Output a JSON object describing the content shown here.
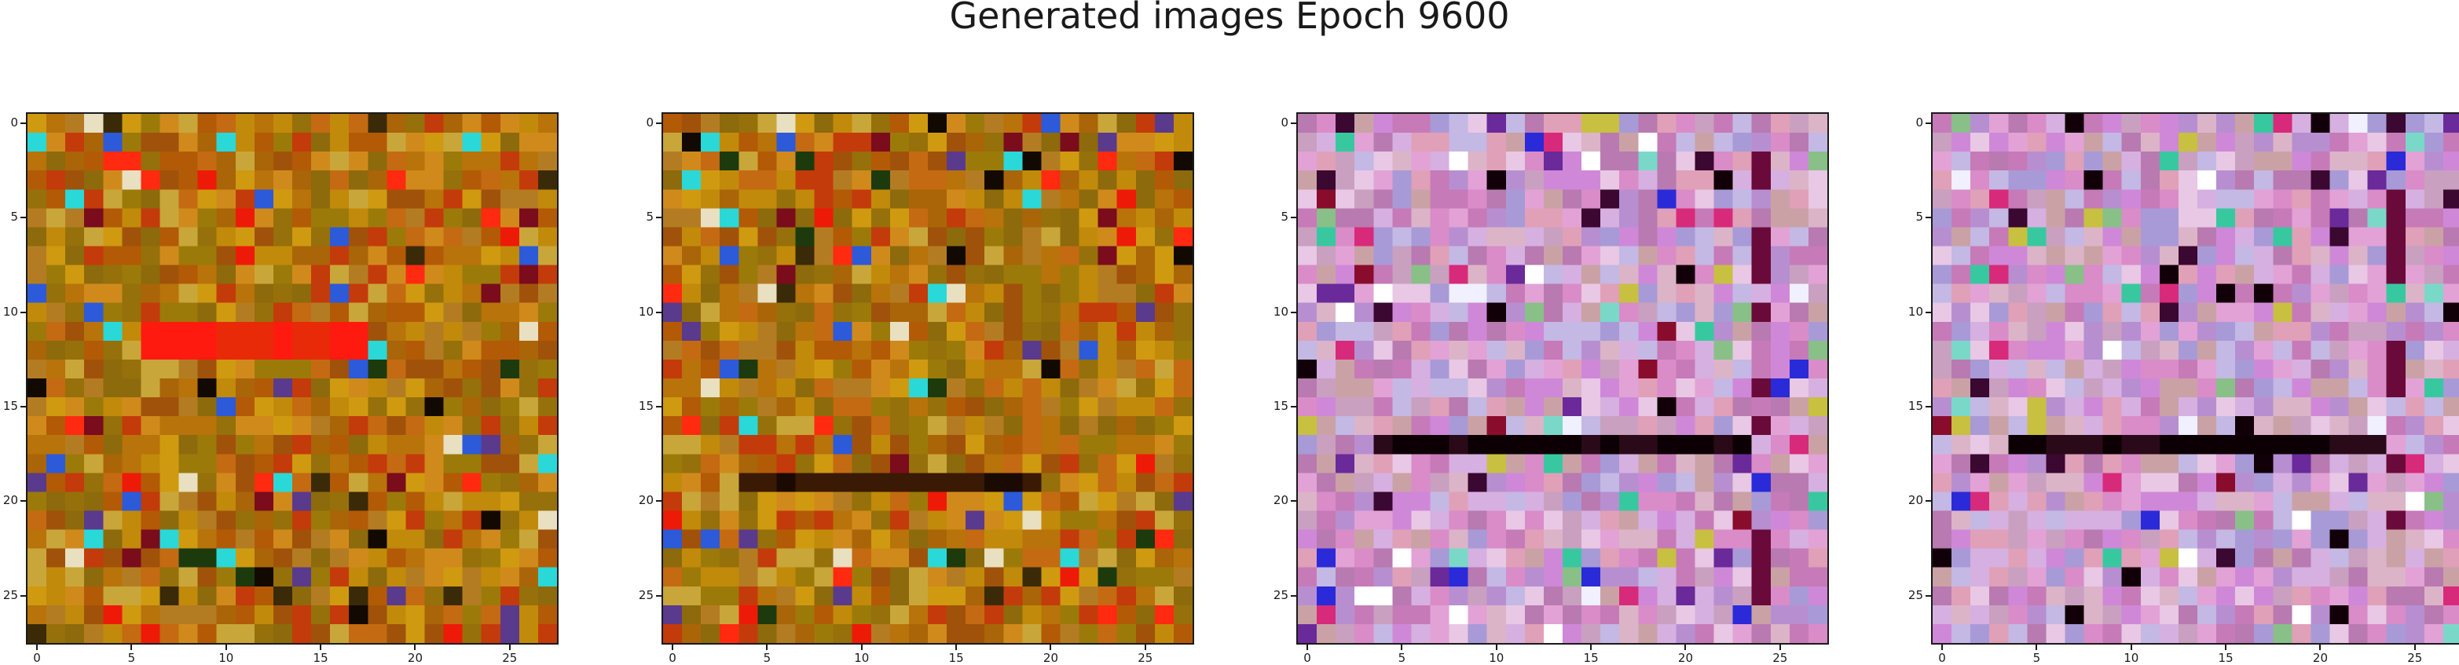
{
  "title": "Generated images Epoch 9600",
  "axis_ticks": [
    "0",
    "5",
    "10",
    "15",
    "20",
    "25"
  ],
  "images": [
    {
      "palette": "warm"
    },
    {
      "palette": "warm"
    },
    {
      "palette": "pink"
    },
    {
      "palette": "pink"
    }
  ]
}
